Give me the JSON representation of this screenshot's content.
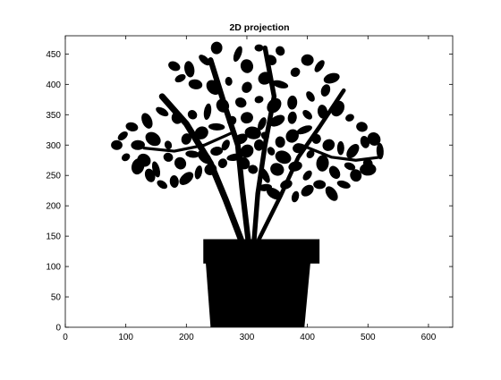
{
  "chart_data": {
    "type": "scatter",
    "title": "2D projection",
    "xlabel": "",
    "ylabel": "",
    "xlim": [
      0,
      640
    ],
    "ylim": [
      0,
      480
    ],
    "xticks": [
      0,
      100,
      200,
      300,
      400,
      500,
      600
    ],
    "yticks": [
      0,
      50,
      100,
      150,
      200,
      250,
      300,
      350,
      400,
      450
    ],
    "grid": false,
    "legend": "none",
    "colors": {
      "fill": "#000000",
      "axis": "#000000",
      "background": "#ffffff"
    },
    "silhouette": {
      "description_shape": "potted-plant",
      "pot_body": [
        [
          240,
          0
        ],
        [
          395,
          0
        ],
        [
          405,
          107
        ],
        [
          232,
          107
        ]
      ],
      "pot_rim": [
        [
          228,
          105
        ],
        [
          420,
          105
        ],
        [
          420,
          145
        ],
        [
          228,
          145
        ]
      ],
      "trunks": [
        [
          [
            290,
            145
          ],
          [
            265,
            210
          ],
          [
            240,
            270
          ],
          [
            200,
            335
          ],
          [
            160,
            380
          ]
        ],
        [
          [
            302,
            145
          ],
          [
            292,
            230
          ],
          [
            285,
            300
          ],
          [
            265,
            360
          ],
          [
            240,
            440
          ]
        ],
        [
          [
            312,
            145
          ],
          [
            318,
            220
          ],
          [
            330,
            300
          ],
          [
            345,
            380
          ],
          [
            330,
            460
          ]
        ],
        [
          [
            320,
            145
          ],
          [
            355,
            215
          ],
          [
            385,
            280
          ],
          [
            420,
            330
          ],
          [
            460,
            390
          ]
        ],
        [
          [
            275,
            320
          ],
          [
            230,
            300
          ],
          [
            180,
            290
          ],
          [
            130,
            295
          ]
        ],
        [
          [
            390,
            300
          ],
          [
            440,
            280
          ],
          [
            480,
            275
          ],
          [
            520,
            280
          ]
        ]
      ],
      "leaves": [
        [
          320,
          460
        ],
        [
          340,
          440
        ],
        [
          300,
          430
        ],
        [
          285,
          450
        ],
        [
          355,
          455
        ],
        [
          250,
          460
        ],
        [
          230,
          440
        ],
        [
          205,
          425
        ],
        [
          180,
          430
        ],
        [
          190,
          410
        ],
        [
          215,
          400
        ],
        [
          245,
          395
        ],
        [
          270,
          405
        ],
        [
          300,
          395
        ],
        [
          330,
          410
        ],
        [
          355,
          400
        ],
        [
          380,
          420
        ],
        [
          400,
          440
        ],
        [
          420,
          430
        ],
        [
          440,
          410
        ],
        [
          430,
          390
        ],
        [
          405,
          380
        ],
        [
          375,
          370
        ],
        [
          345,
          365
        ],
        [
          320,
          375
        ],
        [
          290,
          370
        ],
        [
          260,
          365
        ],
        [
          235,
          355
        ],
        [
          210,
          350
        ],
        [
          185,
          345
        ],
        [
          160,
          355
        ],
        [
          135,
          340
        ],
        [
          110,
          330
        ],
        [
          95,
          315
        ],
        [
          120,
          300
        ],
        [
          145,
          310
        ],
        [
          170,
          300
        ],
        [
          200,
          310
        ],
        [
          225,
          320
        ],
        [
          250,
          330
        ],
        [
          275,
          340
        ],
        [
          300,
          345
        ],
        [
          325,
          335
        ],
        [
          350,
          340
        ],
        [
          375,
          345
        ],
        [
          400,
          350
        ],
        [
          425,
          355
        ],
        [
          450,
          360
        ],
        [
          470,
          345
        ],
        [
          490,
          330
        ],
        [
          510,
          310
        ],
        [
          520,
          290
        ],
        [
          500,
          270
        ],
        [
          480,
          250
        ],
        [
          460,
          235
        ],
        [
          440,
          220
        ],
        [
          420,
          235
        ],
        [
          400,
          250
        ],
        [
          380,
          265
        ],
        [
          360,
          280
        ],
        [
          340,
          290
        ],
        [
          320,
          300
        ],
        [
          300,
          290
        ],
        [
          280,
          280
        ],
        [
          260,
          270
        ],
        [
          240,
          260
        ],
        [
          220,
          255
        ],
        [
          200,
          245
        ],
        [
          180,
          240
        ],
        [
          160,
          235
        ],
        [
          140,
          250
        ],
        [
          120,
          265
        ],
        [
          100,
          280
        ],
        [
          85,
          300
        ],
        [
          130,
          275
        ],
        [
          150,
          260
        ],
        [
          170,
          280
        ],
        [
          190,
          270
        ],
        [
          210,
          285
        ],
        [
          230,
          280
        ],
        [
          250,
          290
        ],
        [
          265,
          300
        ],
        [
          290,
          310
        ],
        [
          310,
          320
        ],
        [
          330,
          315
        ],
        [
          355,
          305
        ],
        [
          375,
          315
        ],
        [
          395,
          325
        ],
        [
          415,
          310
        ],
        [
          435,
          300
        ],
        [
          455,
          295
        ],
        [
          475,
          290
        ],
        [
          495,
          305
        ],
        [
          470,
          265
        ],
        [
          445,
          255
        ],
        [
          425,
          270
        ],
        [
          405,
          285
        ],
        [
          385,
          295
        ],
        [
          350,
          260
        ],
        [
          330,
          250
        ],
        [
          310,
          260
        ],
        [
          295,
          270
        ],
        [
          330,
          230
        ],
        [
          345,
          220
        ],
        [
          365,
          235
        ],
        [
          380,
          215
        ],
        [
          400,
          225
        ],
        [
          500,
          260
        ]
      ]
    }
  }
}
